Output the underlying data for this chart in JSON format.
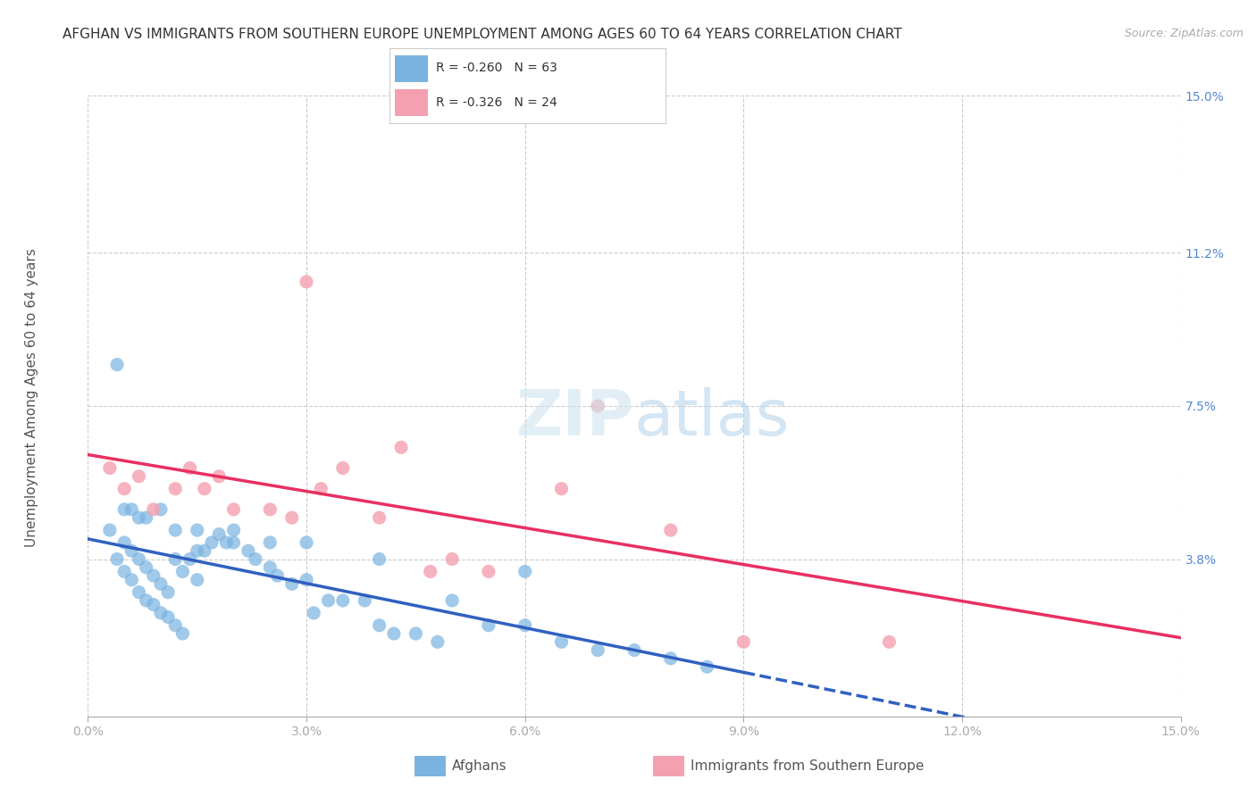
{
  "title": "AFGHAN VS IMMIGRANTS FROM SOUTHERN EUROPE UNEMPLOYMENT AMONG AGES 60 TO 64 YEARS CORRELATION CHART",
  "source": "Source: ZipAtlas.com",
  "ylabel": "Unemployment Among Ages 60 to 64 years",
  "xmin": 0.0,
  "xmax": 0.15,
  "ymin": 0.0,
  "ymax": 0.15,
  "ytick_labels": [
    "15.0%",
    "11.2%",
    "7.5%",
    "3.8%"
  ],
  "ytick_values": [
    0.15,
    0.112,
    0.075,
    0.038
  ],
  "title_color": "#333333",
  "source_color": "#aaaaaa",
  "background_color": "#ffffff",
  "grid_color": "#cccccc",
  "afghan_color": "#7ab3e0",
  "southern_europe_color": "#f4a0b0",
  "afghan_line_color": "#3060c0",
  "southern_europe_line_color": "#e83060",
  "afghan_R": -0.26,
  "afghan_N": 63,
  "southern_europe_R": -0.326,
  "southern_europe_N": 24,
  "afghan_x": [
    0.003,
    0.004,
    0.005,
    0.005,
    0.006,
    0.006,
    0.007,
    0.007,
    0.008,
    0.008,
    0.009,
    0.009,
    0.01,
    0.01,
    0.011,
    0.011,
    0.012,
    0.012,
    0.013,
    0.013,
    0.014,
    0.015,
    0.015,
    0.016,
    0.017,
    0.018,
    0.019,
    0.02,
    0.022,
    0.023,
    0.025,
    0.026,
    0.028,
    0.03,
    0.031,
    0.033,
    0.035,
    0.038,
    0.04,
    0.042,
    0.045,
    0.048,
    0.05,
    0.055,
    0.06,
    0.065,
    0.07,
    0.075,
    0.08,
    0.085,
    0.004,
    0.005,
    0.006,
    0.007,
    0.008,
    0.01,
    0.012,
    0.015,
    0.02,
    0.025,
    0.03,
    0.04,
    0.06
  ],
  "afghan_y": [
    0.045,
    0.038,
    0.042,
    0.035,
    0.04,
    0.033,
    0.038,
    0.03,
    0.036,
    0.028,
    0.034,
    0.027,
    0.032,
    0.025,
    0.03,
    0.024,
    0.038,
    0.022,
    0.035,
    0.02,
    0.038,
    0.04,
    0.033,
    0.04,
    0.042,
    0.044,
    0.042,
    0.045,
    0.04,
    0.038,
    0.036,
    0.034,
    0.032,
    0.033,
    0.025,
    0.028,
    0.028,
    0.028,
    0.022,
    0.02,
    0.02,
    0.018,
    0.028,
    0.022,
    0.022,
    0.018,
    0.016,
    0.016,
    0.014,
    0.012,
    0.085,
    0.05,
    0.05,
    0.048,
    0.048,
    0.05,
    0.045,
    0.045,
    0.042,
    0.042,
    0.042,
    0.038,
    0.035
  ],
  "southern_europe_x": [
    0.003,
    0.005,
    0.007,
    0.009,
    0.012,
    0.014,
    0.016,
    0.018,
    0.02,
    0.025,
    0.028,
    0.03,
    0.032,
    0.035,
    0.04,
    0.043,
    0.047,
    0.05,
    0.055,
    0.065,
    0.07,
    0.08,
    0.09,
    0.11
  ],
  "southern_europe_y": [
    0.06,
    0.055,
    0.058,
    0.05,
    0.055,
    0.06,
    0.055,
    0.058,
    0.05,
    0.05,
    0.048,
    0.105,
    0.055,
    0.06,
    0.048,
    0.065,
    0.035,
    0.038,
    0.035,
    0.055,
    0.075,
    0.045,
    0.018,
    0.018
  ]
}
